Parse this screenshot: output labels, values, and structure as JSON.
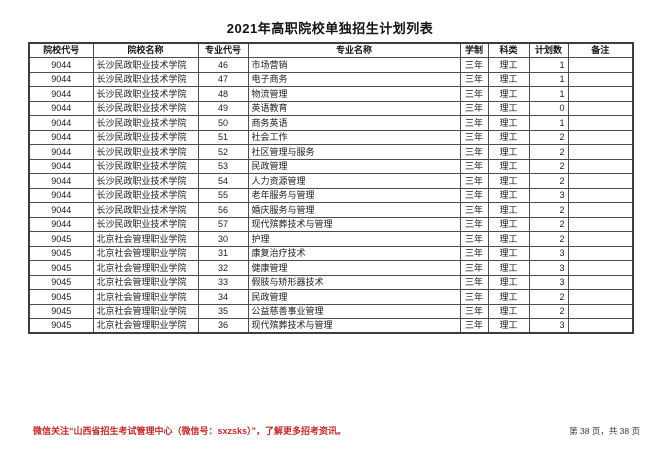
{
  "page": {
    "title": "2021年高职院校单独招生计划列表",
    "footer": {
      "wechat_notice": "微信关注“山西省招生考试管理中心（微信号：sxzsks）”，了解更多招考资讯。",
      "notice_color": "#c62828",
      "page_info": "第 38 页，共 38 页"
    }
  },
  "table": {
    "headers": [
      "院校代号",
      "院校名称",
      "专业代号",
      "专业名称",
      "学制",
      "科类",
      "计划数",
      "备注"
    ],
    "rows": [
      [
        "9044",
        "长沙民政职业技术学院",
        "46",
        "市场营销",
        "三年",
        "理工",
        "1",
        ""
      ],
      [
        "9044",
        "长沙民政职业技术学院",
        "47",
        "电子商务",
        "三年",
        "理工",
        "1",
        ""
      ],
      [
        "9044",
        "长沙民政职业技术学院",
        "48",
        "物流管理",
        "三年",
        "理工",
        "1",
        ""
      ],
      [
        "9044",
        "长沙民政职业技术学院",
        "49",
        "英语教育",
        "三年",
        "理工",
        "0",
        ""
      ],
      [
        "9044",
        "长沙民政职业技术学院",
        "50",
        "商务英语",
        "三年",
        "理工",
        "1",
        ""
      ],
      [
        "9044",
        "长沙民政职业技术学院",
        "51",
        "社会工作",
        "三年",
        "理工",
        "2",
        ""
      ],
      [
        "9044",
        "长沙民政职业技术学院",
        "52",
        "社区管理与服务",
        "三年",
        "理工",
        "2",
        ""
      ],
      [
        "9044",
        "长沙民政职业技术学院",
        "53",
        "民政管理",
        "三年",
        "理工",
        "2",
        ""
      ],
      [
        "9044",
        "长沙民政职业技术学院",
        "54",
        "人力资源管理",
        "三年",
        "理工",
        "2",
        ""
      ],
      [
        "9044",
        "长沙民政职业技术学院",
        "55",
        "老年服务与管理",
        "三年",
        "理工",
        "3",
        ""
      ],
      [
        "9044",
        "长沙民政职业技术学院",
        "56",
        "婚庆服务与管理",
        "三年",
        "理工",
        "2",
        ""
      ],
      [
        "9044",
        "长沙民政职业技术学院",
        "57",
        "现代殡葬技术与管理",
        "三年",
        "理工",
        "2",
        ""
      ],
      [
        "9045",
        "北京社会管理职业学院",
        "30",
        "护理",
        "三年",
        "理工",
        "2",
        ""
      ],
      [
        "9045",
        "北京社会管理职业学院",
        "31",
        "康复治疗技术",
        "三年",
        "理工",
        "3",
        ""
      ],
      [
        "9045",
        "北京社会管理职业学院",
        "32",
        "健康管理",
        "三年",
        "理工",
        "3",
        ""
      ],
      [
        "9045",
        "北京社会管理职业学院",
        "33",
        "假肢与矫形器技术",
        "三年",
        "理工",
        "3",
        ""
      ],
      [
        "9045",
        "北京社会管理职业学院",
        "34",
        "民政管理",
        "三年",
        "理工",
        "2",
        ""
      ],
      [
        "9045",
        "北京社会管理职业学院",
        "35",
        "公益慈善事业管理",
        "三年",
        "理工",
        "2",
        ""
      ],
      [
        "9045",
        "北京社会管理职业学院",
        "36",
        "现代殡葬技术与管理",
        "三年",
        "理工",
        "3",
        ""
      ]
    ]
  }
}
